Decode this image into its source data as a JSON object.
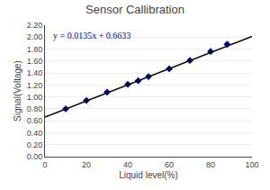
{
  "chart_data": {
    "type": "scatter",
    "title": "Sensor Callibration",
    "xlabel": "Liquid level(%)",
    "ylabel": "Signal(Voltage)",
    "annotations": [
      "y = 0.0135x + 0.6633"
    ],
    "series": [
      {
        "type": "scatter",
        "color": "#00008B",
        "marker": "diamond",
        "x": [
          10,
          20,
          30,
          40,
          45,
          50,
          60,
          70,
          80,
          88
        ],
        "values": [
          0.8,
          0.94,
          1.08,
          1.21,
          1.27,
          1.34,
          1.47,
          1.61,
          1.76,
          1.88
        ]
      },
      {
        "type": "line",
        "color": "#000000",
        "line_style": "solid",
        "x": [
          0,
          100
        ],
        "values": [
          0.6633,
          2.0133
        ]
      }
    ],
    "xlim": [
      0,
      100
    ],
    "xticks": [
      0,
      20,
      40,
      60,
      80,
      100
    ],
    "ylim": [
      0.0,
      2.2
    ],
    "yticks": [
      {
        "value": 0.0,
        "label": "0.00"
      },
      {
        "value": 0.2,
        "label": "0.20"
      },
      {
        "value": 0.4,
        "label": "0.40"
      },
      {
        "value": 0.6,
        "label": "0.60"
      },
      {
        "value": 0.8,
        "label": "0.80"
      },
      {
        "value": 1.0,
        "label": "1.00"
      },
      {
        "value": 1.2,
        "label": "1.20"
      },
      {
        "value": 1.4,
        "label": "1.40"
      },
      {
        "value": 1.6,
        "label": "1.60"
      },
      {
        "value": 1.8,
        "label": "1.80"
      },
      {
        "value": 2.0,
        "label": "2.00"
      },
      {
        "value": 2.2,
        "label": "2.20"
      }
    ],
    "grid": "y"
  }
}
